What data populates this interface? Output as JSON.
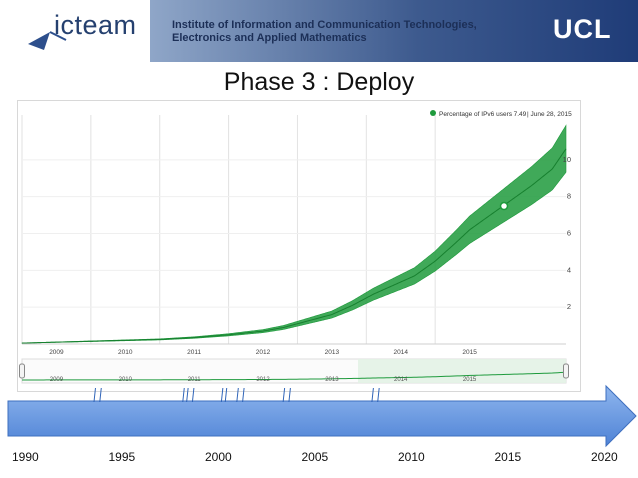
{
  "header": {
    "logo_text": "icteam",
    "institute_line1": "Institute of Information and Communication Technologies,",
    "institute_line2": "Electronics and Applied Mathematics",
    "university": "UCL"
  },
  "slide": {
    "title": "Phase 3 : Deploy"
  },
  "chart_data": {
    "type": "line",
    "legend_label": "Percentage of IPv6 users",
    "legend_value": ": 7.49",
    "legend_date": "| June 28, 2015",
    "series_color": "#1e9a3c",
    "y_ticks": [
      "2",
      "4",
      "6",
      "8",
      "10"
    ],
    "ylim": [
      0,
      12
    ],
    "x_ticks": [
      "2009",
      "2010",
      "2011",
      "2012",
      "2013",
      "2014",
      "2015"
    ],
    "xlim": [
      2008.5,
      2016.4
    ],
    "series": [
      {
        "name": "Percentage of IPv6 users",
        "x": [
          2008.5,
          2009.0,
          2009.5,
          2010.0,
          2010.5,
          2011.0,
          2011.5,
          2012.0,
          2012.3,
          2012.6,
          2013.0,
          2013.3,
          2013.6,
          2013.9,
          2014.2,
          2014.5,
          2014.8,
          2015.0,
          2015.3,
          2015.6,
          2015.9,
          2016.2,
          2016.4
        ],
        "values": [
          0.05,
          0.1,
          0.15,
          0.2,
          0.25,
          0.35,
          0.5,
          0.7,
          0.9,
          1.2,
          1.6,
          2.1,
          2.7,
          3.2,
          3.7,
          4.5,
          5.5,
          6.2,
          7.0,
          7.8,
          8.6,
          9.5,
          10.6
        ]
      }
    ],
    "highlight_point": {
      "x": 2015.5,
      "value": 7.49
    }
  },
  "navigator": {
    "x_ticks": [
      "2009",
      "2010",
      "2011",
      "2012",
      "2013",
      "2014",
      "2015"
    ]
  },
  "timeline": {
    "years": [
      "1990",
      "1995",
      "2000",
      "2005",
      "2010",
      "2015",
      "2020"
    ],
    "arrow_color": "#6a9be0",
    "markers_years": [
      1993.6,
      1993.9,
      1998.2,
      1998.4,
      1998.7,
      2000.2,
      2000.4,
      2001.0,
      2001.3,
      2003.4,
      2003.7,
      2008.0,
      2008.3
    ]
  }
}
